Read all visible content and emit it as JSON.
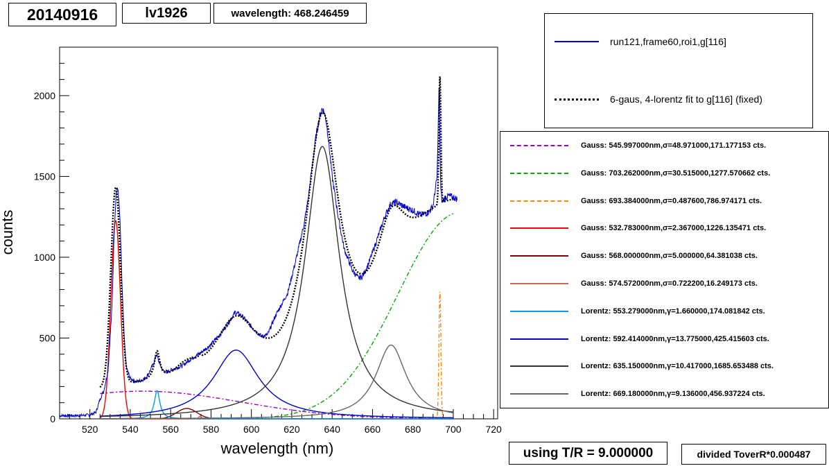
{
  "header": {
    "date": "20140916",
    "id": "lv1926",
    "wavelength": "wavelength: 468.246459"
  },
  "footer": {
    "tr": "using T/R = 9.000000",
    "divided": "divided ToverR*0.000487"
  },
  "legend_top": [
    {
      "label": "run121,frame60,roi1,g[116]",
      "color": "#0000cc",
      "style": "solid"
    },
    {
      "label": "6-gaus, 4-lorentz fit to g[116] (fixed)",
      "color": "#000000",
      "style": "dotted"
    }
  ],
  "legend_components": [
    {
      "label": "Gauss: 545.997000nm,σ=48.971000,171.177153 cts.",
      "color": "#9900cc",
      "style": "dashdot"
    },
    {
      "label": "Gauss: 703.262000nm,σ=30.515000,1277.570662 cts.",
      "color": "#00aa00",
      "style": "dashdot"
    },
    {
      "label": "Gauss: 693.384000nm,σ=0.487600,786.974171 cts.",
      "color": "#ff8800",
      "style": "dashdot"
    },
    {
      "label": "Gauss: 532.783000nm,σ=2.367000,1226.135471 cts.",
      "color": "#ee0000",
      "style": "solid"
    },
    {
      "label": "Gauss: 568.000000nm,σ=5.000000,64.381038 cts.",
      "color": "#880000",
      "style": "solid"
    },
    {
      "label": "Gauss: 574.572000nm,σ=0.722200,16.249173 cts.",
      "color": "#cc6655",
      "style": "solid"
    },
    {
      "label": "Lorentz: 553.279000nm,γ=1.660000,174.081842 cts.",
      "color": "#0099ee",
      "style": "solid"
    },
    {
      "label": "Lorentz: 592.414000nm,γ=13.775000,425.415603 cts.",
      "color": "#0000cc",
      "style": "solid"
    },
    {
      "label": "Lorentz: 635.150000nm,γ=10.417000,1685.653488 cts.",
      "color": "#333333",
      "style": "solid"
    },
    {
      "label": "Lorentz: 669.180000nm,γ=9.136000,456.937224 cts.",
      "color": "#666666",
      "style": "solid"
    }
  ],
  "chart_data": {
    "type": "line",
    "xlabel": "wavelength (nm)",
    "ylabel": "counts",
    "xlim": [
      505,
      722
    ],
    "ylim": [
      0,
      2300
    ],
    "xticks": [
      520,
      540,
      560,
      580,
      600,
      620,
      640,
      660,
      680,
      700,
      720
    ],
    "yticks": [
      0,
      500,
      1000,
      1500,
      2000
    ],
    "data_series": {
      "name": "run121,frame60,roi1,g[116]",
      "color": "#0000cc",
      "x": [
        505,
        515,
        520,
        523,
        525,
        527,
        529,
        531,
        532,
        533,
        534,
        535,
        536,
        537,
        538,
        540,
        543,
        546,
        548,
        550,
        552,
        553,
        554,
        556,
        558,
        562,
        566,
        570,
        575,
        580,
        585,
        590,
        592,
        595,
        600,
        605,
        608,
        612,
        618,
        622,
        626,
        628,
        630,
        632,
        634,
        635,
        636,
        637,
        638,
        640,
        643,
        646,
        650,
        653,
        655,
        658,
        662,
        666,
        669,
        672,
        676,
        680,
        684,
        688,
        690,
        692,
        692.6,
        693,
        693.4,
        693.8,
        694.5,
        696,
        698,
        702
      ],
      "y": [
        20,
        20,
        25,
        40,
        120,
        180,
        300,
        700,
        1150,
        1400,
        1420,
        1200,
        800,
        500,
        320,
        250,
        230,
        240,
        260,
        300,
        360,
        400,
        360,
        300,
        290,
        310,
        330,
        370,
        410,
        460,
        530,
        620,
        660,
        640,
        570,
        510,
        520,
        640,
        780,
        980,
        1200,
        1350,
        1550,
        1750,
        1880,
        1920,
        1900,
        1850,
        1750,
        1500,
        1250,
        1050,
        920,
        870,
        880,
        960,
        1100,
        1250,
        1330,
        1340,
        1310,
        1290,
        1260,
        1280,
        1320,
        1500,
        1850,
        2080,
        1700,
        1420,
        1340,
        1370,
        1380,
        1360
      ]
    },
    "fit_series": {
      "name": "6-gaus, 4-lorentz fit to g[116] (fixed)",
      "color": "#000000"
    },
    "components": [
      {
        "kind": "gauss",
        "center": 545.997,
        "width": 48.971,
        "amp": 171.177153,
        "color": "#9900cc",
        "dash": "6,3,2,3"
      },
      {
        "kind": "gauss",
        "center": 703.262,
        "width": 30.515,
        "amp": 1277.570662,
        "color": "#00aa00",
        "dash": "6,3,2,3"
      },
      {
        "kind": "gauss",
        "center": 693.384,
        "width": 0.4876,
        "amp": 786.974171,
        "color": "#ff8800",
        "dash": "6,3,2,3"
      },
      {
        "kind": "gauss",
        "center": 532.783,
        "width": 2.367,
        "amp": 1226.135471,
        "color": "#ee0000",
        "dash": ""
      },
      {
        "kind": "gauss",
        "center": 568.0,
        "width": 5.0,
        "amp": 64.381038,
        "color": "#880000",
        "dash": ""
      },
      {
        "kind": "gauss",
        "center": 574.572,
        "width": 0.7222,
        "amp": 16.249173,
        "color": "#cc6655",
        "dash": ""
      },
      {
        "kind": "lorentz",
        "center": 553.279,
        "width": 1.66,
        "amp": 174.081842,
        "color": "#0099ee",
        "dash": ""
      },
      {
        "kind": "lorentz",
        "center": 592.414,
        "width": 13.775,
        "amp": 425.415603,
        "color": "#0000cc",
        "dash": ""
      },
      {
        "kind": "lorentz",
        "center": 635.15,
        "width": 10.417,
        "amp": 1685.653488,
        "color": "#333333",
        "dash": ""
      },
      {
        "kind": "lorentz",
        "center": 669.18,
        "width": 9.136,
        "amp": 456.937224,
        "color": "#666666",
        "dash": ""
      }
    ],
    "fit_range": [
      525,
      700
    ],
    "grid": false
  }
}
